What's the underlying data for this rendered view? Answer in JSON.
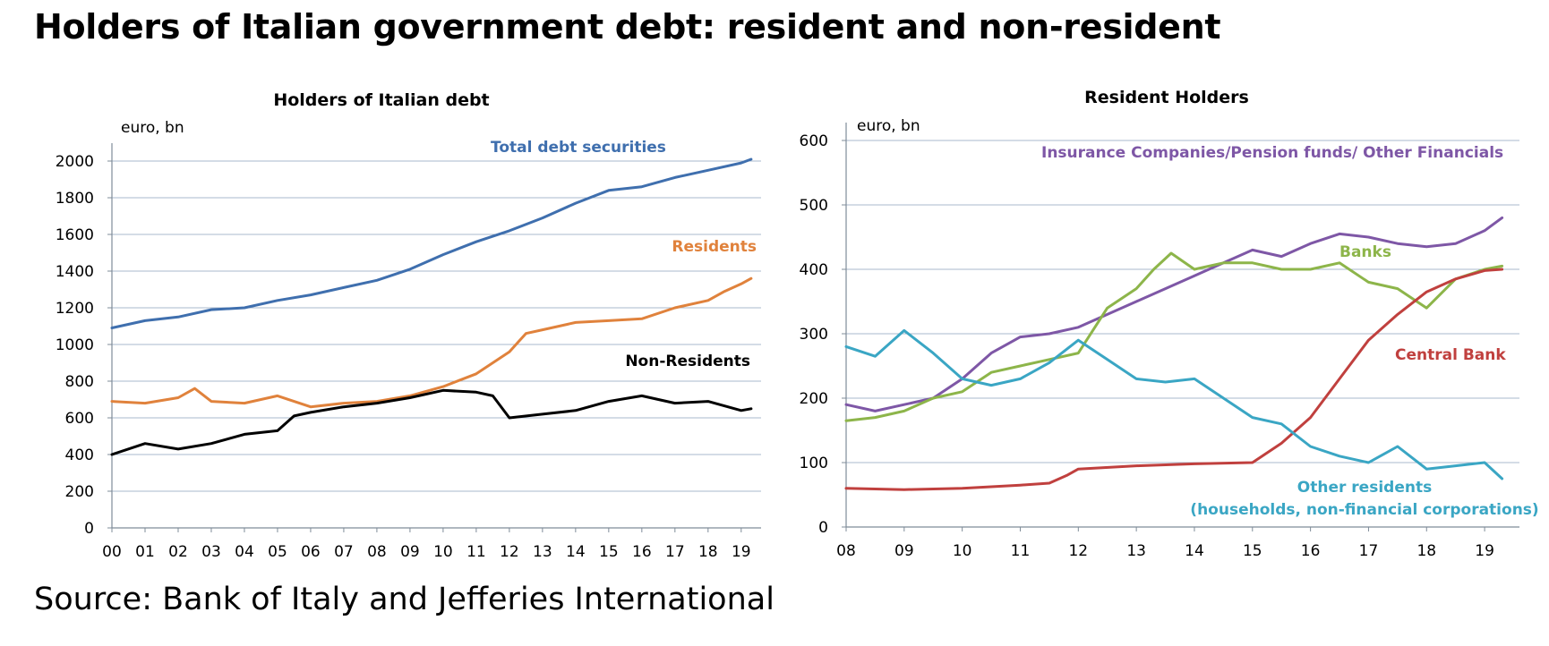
{
  "page": {
    "title": "Holders of Italian government debt: resident and non-resident",
    "source": "Source: Bank of Italy and Jefferies International"
  },
  "colors": {
    "total": "#3f6fae",
    "residents": "#e0823c",
    "non_residents": "#000000",
    "insurance": "#7e57a6",
    "banks": "#8db54a",
    "central_bank": "#c0403e",
    "other": "#3aa6c4",
    "grid": "#a9b9cc"
  },
  "chart_data": [
    {
      "type": "line",
      "title": "Holders of Italian debt",
      "ylabel": "euro, bn",
      "xlabel": "",
      "xlim": [
        2000,
        2019.6
      ],
      "ylim": [
        0,
        2000
      ],
      "yticks": [
        "0",
        "200",
        "400",
        "600",
        "800",
        "1000",
        "1200",
        "1400",
        "1600",
        "1800",
        "2000"
      ],
      "xticks": [
        "00",
        "01",
        "02",
        "03",
        "04",
        "05",
        "06",
        "07",
        "08",
        "09",
        "10",
        "11",
        "12",
        "13",
        "14",
        "15",
        "16",
        "17",
        "18",
        "19"
      ],
      "grid": "horizontal",
      "series": [
        {
          "name": "Total debt securities",
          "label": "Total debt securities",
          "color_key": "total",
          "x": [
            2000,
            2001,
            2002,
            2003,
            2004,
            2005,
            2006,
            2007,
            2008,
            2009,
            2010,
            2011,
            2012,
            2013,
            2014,
            2015,
            2016,
            2017,
            2018,
            2019,
            2019.3
          ],
          "y": [
            1090,
            1130,
            1150,
            1190,
            1200,
            1240,
            1270,
            1310,
            1350,
            1410,
            1490,
            1560,
            1620,
            1690,
            1770,
            1840,
            1860,
            1910,
            1950,
            1990,
            2010
          ]
        },
        {
          "name": "Residents",
          "label": "Residents",
          "color_key": "residents",
          "x": [
            2000,
            2001,
            2002,
            2002.5,
            2003,
            2004,
            2005,
            2006,
            2007,
            2008,
            2009,
            2010,
            2011,
            2012,
            2012.5,
            2013,
            2014,
            2015,
            2016,
            2017,
            2018,
            2018.5,
            2019,
            2019.3
          ],
          "y": [
            690,
            680,
            710,
            760,
            690,
            680,
            720,
            660,
            680,
            690,
            720,
            770,
            840,
            960,
            1060,
            1080,
            1120,
            1130,
            1140,
            1200,
            1240,
            1290,
            1330,
            1360
          ]
        },
        {
          "name": "Non-Residents",
          "label": "Non-Residents",
          "color_key": "non_residents",
          "x": [
            2000,
            2001,
            2002,
            2003,
            2004,
            2005,
            2005.5,
            2006,
            2007,
            2008,
            2009,
            2010,
            2011,
            2011.5,
            2012,
            2013,
            2014,
            2015,
            2016,
            2017,
            2018,
            2019,
            2019.3
          ],
          "y": [
            400,
            460,
            430,
            460,
            510,
            530,
            610,
            630,
            660,
            680,
            710,
            750,
            740,
            720,
            600,
            620,
            640,
            690,
            720,
            680,
            690,
            640,
            650
          ]
        }
      ]
    },
    {
      "type": "line",
      "title": "Resident Holders",
      "ylabel": "euro, bn",
      "xlabel": "",
      "xlim": [
        2008,
        2019.6
      ],
      "ylim": [
        0,
        600
      ],
      "yticks": [
        "0",
        "100",
        "200",
        "300",
        "400",
        "500",
        "600"
      ],
      "xticks": [
        "08",
        "09",
        "10",
        "11",
        "12",
        "13",
        "14",
        "15",
        "16",
        "17",
        "18",
        "19"
      ],
      "grid": "horizontal",
      "series": [
        {
          "name": "Insurance Companies/Pension funds/ Other Financials",
          "label": "Insurance Companies/Pension funds/ Other Financials",
          "color_key": "insurance",
          "x": [
            2008,
            2008.5,
            2009,
            2009.5,
            2010,
            2010.5,
            2011,
            2011.5,
            2012,
            2012.5,
            2013,
            2013.5,
            2014,
            2014.5,
            2015,
            2015.5,
            2016,
            2016.5,
            2017,
            2017.5,
            2018,
            2018.5,
            2019,
            2019.3
          ],
          "y": [
            190,
            180,
            190,
            200,
            230,
            270,
            295,
            300,
            310,
            330,
            350,
            370,
            390,
            410,
            430,
            420,
            440,
            455,
            450,
            440,
            435,
            440,
            460,
            480
          ]
        },
        {
          "name": "Banks",
          "label": "Banks",
          "color_key": "banks",
          "x": [
            2008,
            2008.5,
            2009,
            2009.5,
            2010,
            2010.5,
            2011,
            2011.5,
            2012,
            2012.5,
            2013,
            2013.3,
            2013.6,
            2014,
            2014.5,
            2015,
            2015.5,
            2016,
            2016.5,
            2017,
            2017.5,
            2018,
            2018.5,
            2019,
            2019.3
          ],
          "y": [
            165,
            170,
            180,
            200,
            210,
            240,
            250,
            260,
            270,
            340,
            370,
            400,
            425,
            400,
            410,
            410,
            400,
            400,
            410,
            380,
            370,
            340,
            385,
            400,
            405
          ]
        },
        {
          "name": "Central Bank",
          "label": "Central Bank",
          "color_key": "central_bank",
          "x": [
            2008,
            2009,
            2010,
            2011,
            2011.5,
            2011.8,
            2012,
            2013,
            2014,
            2015,
            2015.5,
            2016,
            2016.5,
            2017,
            2017.5,
            2018,
            2018.5,
            2019,
            2019.3
          ],
          "y": [
            60,
            58,
            60,
            65,
            68,
            80,
            90,
            95,
            98,
            100,
            130,
            170,
            230,
            290,
            330,
            365,
            385,
            398,
            400
          ]
        },
        {
          "name": "Other residents (households, non-financial corporations)",
          "label": "Other residents",
          "label2": "(households, non-financial corporations)",
          "color_key": "other",
          "x": [
            2008,
            2008.5,
            2009,
            2009.5,
            2010,
            2010.5,
            2011,
            2011.5,
            2012,
            2012.5,
            2013,
            2013.5,
            2014,
            2014.5,
            2015,
            2015.5,
            2016,
            2016.5,
            2017,
            2017.5,
            2018,
            2018.5,
            2019,
            2019.3
          ],
          "y": [
            280,
            265,
            305,
            270,
            230,
            220,
            230,
            255,
            290,
            260,
            230,
            225,
            230,
            200,
            170,
            160,
            125,
            110,
            100,
            125,
            90,
            95,
            100,
            75
          ]
        }
      ]
    }
  ]
}
